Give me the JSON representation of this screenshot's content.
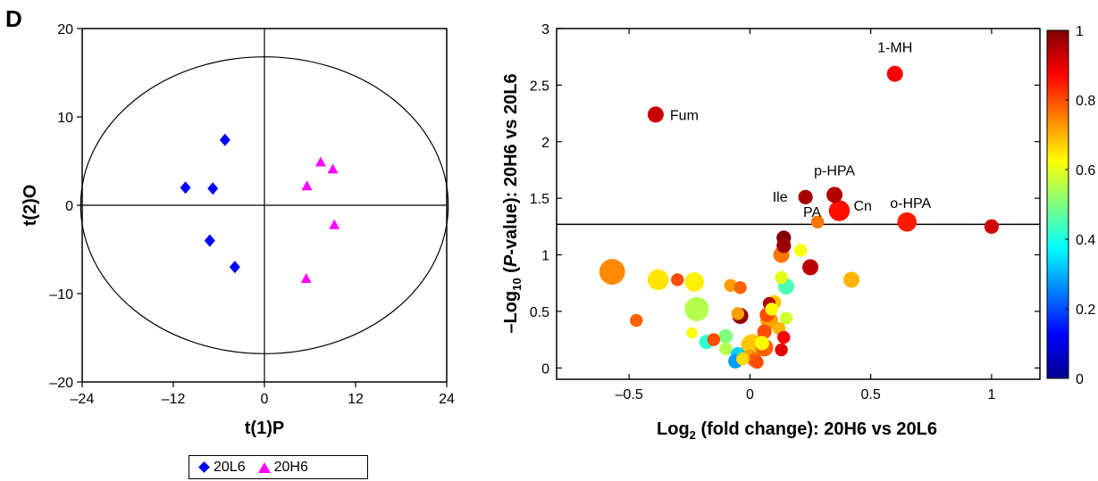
{
  "panel_label": "D",
  "legend": {
    "series": [
      {
        "name": "20L6",
        "marker": "diamond",
        "color": "#0000ff"
      },
      {
        "name": "20H6",
        "marker": "triangle",
        "color": "#ff00ff"
      }
    ]
  },
  "chart_data": [
    {
      "type": "scatter",
      "title": "",
      "xlabel": "t(1)P",
      "ylabel": "t(2)O",
      "xlim": [
        -24,
        24
      ],
      "ylim": [
        -20,
        20
      ],
      "xticks": [
        -24,
        -12,
        0,
        12,
        24
      ],
      "xtick_labels": [
        "–24",
        "–12",
        "0",
        "12",
        "24"
      ],
      "yticks": [
        -20,
        -10,
        0,
        10,
        20
      ],
      "ytick_labels": [
        "–20",
        "–10",
        "0",
        "10",
        "20"
      ],
      "reference_lines": {
        "x": 0,
        "y": 0
      },
      "confidence_ellipse": {
        "center": [
          0,
          0
        ],
        "rx": 24.2,
        "ry": 16.8
      },
      "series": [
        {
          "name": "20L6",
          "marker": "diamond",
          "color": "#0000ff",
          "points": [
            [
              -5.2,
              7.4
            ],
            [
              -10.4,
              2.0
            ],
            [
              -6.8,
              1.9
            ],
            [
              -7.2,
              -4.0
            ],
            [
              -3.9,
              -7.0
            ]
          ]
        },
        {
          "name": "20H6",
          "marker": "triangle",
          "color": "#ff00ff",
          "points": [
            [
              7.4,
              4.9
            ],
            [
              9.0,
              4.1
            ],
            [
              5.6,
              2.2
            ],
            [
              9.2,
              -2.2
            ],
            [
              5.5,
              -8.3
            ]
          ]
        }
      ]
    },
    {
      "type": "scatter",
      "title": "",
      "xlabel_parts": [
        "Log",
        "2",
        " (fold change): 20H6 vs 20L6"
      ],
      "ylabel_parts": [
        "–Log",
        "10",
        " (",
        "P",
        "-value): 20H6 vs 20L6"
      ],
      "xlim": [
        -0.8,
        1.2
      ],
      "ylim": [
        -0.1,
        3
      ],
      "xticks": [
        -0.5,
        0,
        0.5,
        1
      ],
      "xtick_labels": [
        "–0.5",
        "0",
        "0.5",
        "1"
      ],
      "yticks": [
        0,
        0.5,
        1,
        1.5,
        2,
        2.5,
        3
      ],
      "ytick_labels": [
        "0",
        "0.5",
        "1",
        "1.5",
        "2",
        "2.5",
        "3"
      ],
      "threshold_line_y": 1.27,
      "colorbar": {
        "range": [
          0,
          1
        ],
        "ticks": [
          0,
          0.2,
          0.4,
          0.6,
          0.8,
          1
        ],
        "tick_labels": [
          "0",
          "0.2",
          "0.4",
          "0.6",
          "0.8",
          "1"
        ],
        "colormap": "jet"
      },
      "points": [
        {
          "x": 0.6,
          "y": 2.6,
          "c": 0.88,
          "size": 1.0,
          "label": "1-MH"
        },
        {
          "x": -0.39,
          "y": 2.24,
          "c": 0.93,
          "size": 1.0,
          "label": "Fum"
        },
        {
          "x": 0.35,
          "y": 1.53,
          "c": 0.95,
          "size": 1.0,
          "label": "p-HPA"
        },
        {
          "x": 0.23,
          "y": 1.51,
          "c": 0.96,
          "size": 0.9,
          "label": "Ile"
        },
        {
          "x": 0.37,
          "y": 1.39,
          "c": 0.86,
          "size": 1.3,
          "label": "Cn"
        },
        {
          "x": 0.28,
          "y": 1.29,
          "c": 0.76,
          "size": 0.8,
          "label": "PA"
        },
        {
          "x": 0.65,
          "y": 1.29,
          "c": 0.85,
          "size": 1.2,
          "label": "o-HPA"
        },
        {
          "x": 1.0,
          "y": 1.25,
          "c": 0.92,
          "size": 0.9,
          "label": ""
        },
        {
          "x": 0.14,
          "y": 1.15,
          "c": 1.0,
          "size": 0.9,
          "label": ""
        },
        {
          "x": 0.14,
          "y": 1.08,
          "c": 0.97,
          "size": 0.9,
          "label": ""
        },
        {
          "x": 0.21,
          "y": 1.04,
          "c": 0.62,
          "size": 0.8,
          "label": ""
        },
        {
          "x": 0.13,
          "y": 1.0,
          "c": 0.76,
          "size": 1.0,
          "label": ""
        },
        {
          "x": 0.25,
          "y": 0.89,
          "c": 0.94,
          "size": 1.0,
          "label": ""
        },
        {
          "x": -0.57,
          "y": 0.85,
          "c": 0.74,
          "size": 1.6,
          "label": ""
        },
        {
          "x": -0.38,
          "y": 0.78,
          "c": 0.65,
          "size": 1.3,
          "label": ""
        },
        {
          "x": -0.3,
          "y": 0.78,
          "c": 0.8,
          "size": 0.8,
          "label": ""
        },
        {
          "x": 0.42,
          "y": 0.78,
          "c": 0.7,
          "size": 1.0,
          "label": ""
        },
        {
          "x": -0.23,
          "y": 0.76,
          "c": 0.64,
          "size": 1.2,
          "label": ""
        },
        {
          "x": -0.08,
          "y": 0.73,
          "c": 0.72,
          "size": 0.8,
          "label": ""
        },
        {
          "x": 0.15,
          "y": 0.72,
          "c": 0.45,
          "size": 1.0,
          "label": ""
        },
        {
          "x": 0.13,
          "y": 0.8,
          "c": 0.6,
          "size": 0.8,
          "label": ""
        },
        {
          "x": -0.04,
          "y": 0.71,
          "c": 0.78,
          "size": 0.8,
          "label": ""
        },
        {
          "x": 0.08,
          "y": 0.57,
          "c": 0.95,
          "size": 0.8,
          "label": ""
        },
        {
          "x": 0.1,
          "y": 0.58,
          "c": 0.68,
          "size": 0.9,
          "label": ""
        },
        {
          "x": 0.09,
          "y": 0.52,
          "c": 0.62,
          "size": 0.8,
          "label": ""
        },
        {
          "x": -0.22,
          "y": 0.52,
          "c": 0.55,
          "size": 1.5,
          "label": ""
        },
        {
          "x": -0.05,
          "y": 0.48,
          "c": 0.72,
          "size": 0.8,
          "label": ""
        },
        {
          "x": 0.07,
          "y": 0.47,
          "c": 0.8,
          "size": 0.9,
          "label": ""
        },
        {
          "x": -0.04,
          "y": 0.46,
          "c": 0.98,
          "size": 1.0,
          "label": ""
        },
        {
          "x": 0.15,
          "y": 0.44,
          "c": 0.58,
          "size": 0.8,
          "label": ""
        },
        {
          "x": 0.08,
          "y": 0.42,
          "c": 0.72,
          "size": 1.1,
          "label": ""
        },
        {
          "x": -0.47,
          "y": 0.42,
          "c": 0.78,
          "size": 0.8,
          "label": ""
        },
        {
          "x": 0.12,
          "y": 0.35,
          "c": 0.7,
          "size": 0.8,
          "label": ""
        },
        {
          "x": 0.06,
          "y": 0.32,
          "c": 0.8,
          "size": 0.9,
          "label": ""
        },
        {
          "x": -0.24,
          "y": 0.31,
          "c": 0.62,
          "size": 0.7,
          "label": ""
        },
        {
          "x": 0.14,
          "y": 0.27,
          "c": 0.88,
          "size": 0.8,
          "label": ""
        },
        {
          "x": -0.1,
          "y": 0.28,
          "c": 0.5,
          "size": 0.9,
          "label": ""
        },
        {
          "x": -0.15,
          "y": 0.25,
          "c": 0.8,
          "size": 0.8,
          "label": ""
        },
        {
          "x": -0.18,
          "y": 0.23,
          "c": 0.42,
          "size": 0.9,
          "label": ""
        },
        {
          "x": 0.05,
          "y": 0.22,
          "c": 0.63,
          "size": 0.9,
          "label": ""
        },
        {
          "x": 0.06,
          "y": 0.18,
          "c": 0.78,
          "size": 1.1,
          "label": ""
        },
        {
          "x": 0.01,
          "y": 0.2,
          "c": 0.68,
          "size": 1.4,
          "label": ""
        },
        {
          "x": -0.1,
          "y": 0.17,
          "c": 0.55,
          "size": 0.8,
          "label": ""
        },
        {
          "x": 0.13,
          "y": 0.16,
          "c": 0.9,
          "size": 0.8,
          "label": ""
        },
        {
          "x": -0.05,
          "y": 0.12,
          "c": 0.33,
          "size": 0.9,
          "label": ""
        },
        {
          "x": 0.0,
          "y": 0.1,
          "c": 0.72,
          "size": 0.9,
          "label": ""
        },
        {
          "x": -0.03,
          "y": 0.08,
          "c": 0.66,
          "size": 0.8,
          "label": ""
        },
        {
          "x": 0.02,
          "y": 0.07,
          "c": 0.78,
          "size": 0.9,
          "label": ""
        },
        {
          "x": -0.06,
          "y": 0.06,
          "c": 0.28,
          "size": 0.9,
          "label": ""
        },
        {
          "x": 0.03,
          "y": 0.05,
          "c": 0.8,
          "size": 0.8,
          "label": ""
        }
      ]
    }
  ]
}
